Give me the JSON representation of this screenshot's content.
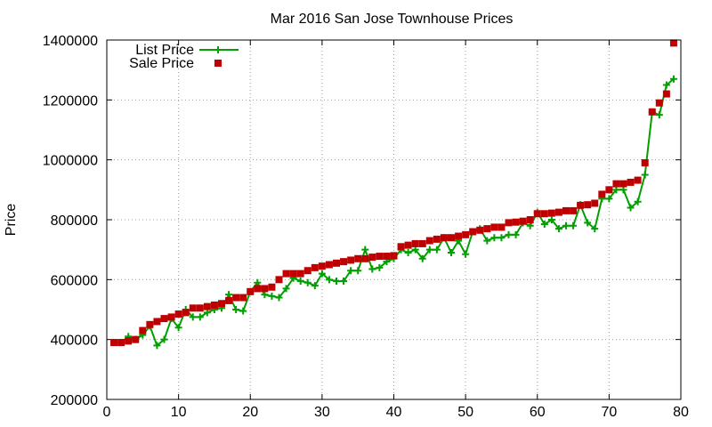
{
  "chart_data": {
    "type": "line",
    "title": "Mar 2016 San Jose Townhouse Prices",
    "xlabel": "",
    "ylabel": "Price",
    "xlim": [
      0,
      80
    ],
    "ylim": [
      200000,
      1400000
    ],
    "xticks": [
      0,
      10,
      20,
      30,
      40,
      50,
      60,
      70,
      80
    ],
    "yticks": [
      200000,
      400000,
      600000,
      800000,
      1000000,
      1200000,
      1400000
    ],
    "xtick_labels": [
      "0",
      "10",
      "20",
      "30",
      "40",
      "50",
      "60",
      "70",
      "80"
    ],
    "ytick_labels": [
      "200000",
      "400000",
      "600000",
      "800000",
      "1000000",
      "1200000",
      "1400000"
    ],
    "grid": true,
    "legend_position": "top-left",
    "colors": {
      "list": "#00a000",
      "sale": "#c00000"
    },
    "x": [
      1,
      2,
      3,
      4,
      5,
      6,
      7,
      8,
      9,
      10,
      11,
      12,
      13,
      14,
      15,
      16,
      17,
      18,
      19,
      20,
      21,
      22,
      23,
      24,
      25,
      26,
      27,
      28,
      29,
      30,
      31,
      32,
      33,
      34,
      35,
      36,
      37,
      38,
      39,
      40,
      41,
      42,
      43,
      44,
      45,
      46,
      47,
      48,
      49,
      50,
      51,
      52,
      53,
      54,
      55,
      56,
      57,
      58,
      59,
      60,
      61,
      62,
      63,
      64,
      65,
      66,
      67,
      68,
      69,
      70,
      71,
      72,
      73,
      74,
      75,
      76,
      77,
      78,
      79
    ],
    "series": [
      {
        "name": "List Price",
        "style": "linespoints",
        "values": [
          390000,
          390000,
          410000,
          400000,
          415000,
          445000,
          380000,
          400000,
          470000,
          440000,
          500000,
          475000,
          475000,
          490000,
          500000,
          505000,
          550000,
          500000,
          495000,
          560000,
          590000,
          550000,
          545000,
          540000,
          570000,
          605000,
          595000,
          590000,
          580000,
          620000,
          600000,
          595000,
          595000,
          630000,
          630000,
          700000,
          635000,
          640000,
          660000,
          670000,
          700000,
          690000,
          700000,
          670000,
          700000,
          700000,
          740000,
          690000,
          730000,
          685000,
          760000,
          770000,
          730000,
          740000,
          740000,
          750000,
          750000,
          790000,
          780000,
          825000,
          785000,
          800000,
          770000,
          780000,
          780000,
          850000,
          790000,
          770000,
          870000,
          870000,
          900000,
          900000,
          840000,
          860000,
          950000,
          1160000,
          1150000,
          1250000,
          1270000
        ]
      },
      {
        "name": "Sale Price",
        "style": "points",
        "values": [
          390000,
          390000,
          395000,
          400000,
          430000,
          450000,
          460000,
          470000,
          475000,
          485000,
          490000,
          505000,
          505000,
          510000,
          515000,
          520000,
          530000,
          540000,
          540000,
          560000,
          570000,
          570000,
          575000,
          600000,
          620000,
          620000,
          620000,
          630000,
          640000,
          645000,
          650000,
          655000,
          660000,
          665000,
          670000,
          670000,
          675000,
          678000,
          678000,
          680000,
          710000,
          715000,
          720000,
          720000,
          730000,
          735000,
          740000,
          740000,
          745000,
          750000,
          760000,
          765000,
          770000,
          775000,
          775000,
          790000,
          792000,
          795000,
          800000,
          820000,
          820000,
          822000,
          825000,
          830000,
          830000,
          848000,
          850000,
          855000,
          885000,
          900000,
          920000,
          920000,
          925000,
          932000,
          990000,
          1160000,
          1190000,
          1220000,
          1390000
        ]
      }
    ]
  }
}
